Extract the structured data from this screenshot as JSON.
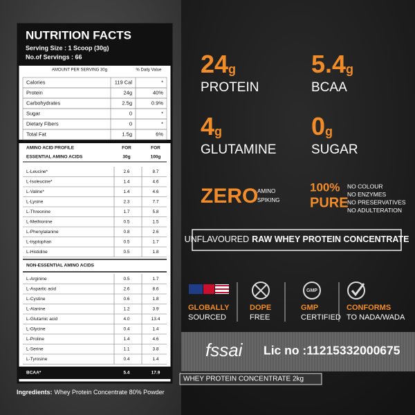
{
  "nutrition": {
    "title": "NUTRITION FACTS",
    "serving_size": "Serving Size : 1 Scoop (30g)",
    "servings": "No.of Servings : 66",
    "table_header": [
      "AMOUNT PER SERVING 30g",
      "% Daily Value"
    ],
    "rows": [
      [
        "Calories",
        "119 Cal",
        "*"
      ],
      [
        "Protein",
        "24g",
        "40%"
      ],
      [
        "Carbohydrates",
        "2.5g",
        "0.9%"
      ],
      [
        "Sugar",
        "0",
        "*"
      ],
      [
        "Dietary Fibers",
        "0",
        "*"
      ],
      [
        "Total Fat",
        "1.5g",
        "6%"
      ]
    ]
  },
  "amino": {
    "header": [
      "AMINO ACID PROFILE",
      "ESSENTIAL AMINO ACIDS"
    ],
    "col1": [
      "FOR",
      "30g"
    ],
    "col2": [
      "FOR",
      "100g"
    ],
    "essential": [
      [
        "L-Leucine*",
        "2.6",
        "8.7"
      ],
      [
        "L-Isoleucine*",
        "1.4",
        "4.6"
      ],
      [
        "L-Valine*",
        "1.4",
        "4.6"
      ],
      [
        "L-Lysine",
        "2.3",
        "7.7"
      ],
      [
        "L-Threonine",
        "1.7",
        "5.8"
      ],
      [
        "L-Methionine",
        "0.5",
        "1.5"
      ],
      [
        "L-Phenylalanine",
        "0.8",
        "2.6"
      ],
      [
        "L-tryptophan",
        "0.5",
        "1.7"
      ],
      [
        "L-Histidine",
        "0.5",
        "1.8"
      ]
    ],
    "non_essential_title": "NON-ESSENTIAL AMINO ACIDS",
    "non_essential": [
      [
        "L-Arginine",
        "0.5",
        "1.7"
      ],
      [
        "L-Aspartic acid",
        "2.6",
        "8.6"
      ],
      [
        "L-Cystine",
        "0.6",
        "1.8"
      ],
      [
        "L-Alanine",
        "1.2",
        "3.9"
      ],
      [
        "L-Glutamic acid",
        "4.0",
        "13.4"
      ],
      [
        "L-Glycine",
        "0.4",
        "1.4"
      ],
      [
        "L-Proline",
        "1.4",
        "4.6"
      ],
      [
        "L-Serine",
        "1.1",
        "3.8"
      ],
      [
        "L-Tyrosine",
        "0.4",
        "1.4"
      ]
    ],
    "bcaa": [
      "BCAA*",
      "5.4",
      "17.9"
    ]
  },
  "ingredients": {
    "label": "Ingredients:",
    "text": "Whey Protein Concentrate 80% Powder"
  },
  "highlights": [
    {
      "amount": "24",
      "unit": "g",
      "label": "PROTEIN"
    },
    {
      "amount": "5.4",
      "unit": "g",
      "label": "BCAA"
    },
    {
      "amount": "4",
      "unit": "g",
      "label": "GLUTAMINE"
    },
    {
      "amount": "0",
      "unit": "g",
      "label": "SUGAR"
    }
  ],
  "zero": {
    "word": "ZERO",
    "note": [
      "AMINO",
      "SPIKING"
    ]
  },
  "pure": {
    "word": [
      "100%",
      "PURE"
    ],
    "items": [
      "NO COLOUR",
      "NO ENZYMES",
      "NO PRESERVATIVES",
      "NO ADULTERATION"
    ]
  },
  "banner": {
    "prefix": "UNFLAVOURED",
    "bold": "RAW WHEY PROTEIN CONCENTRATE"
  },
  "badges": [
    {
      "line1": "GLOBALLY",
      "line2": "SOURCED"
    },
    {
      "line1": "DOPE",
      "line2": "FREE"
    },
    {
      "icon": "GMP",
      "line1": "GMP",
      "line2": "CERTIFIED"
    },
    {
      "line1": "CONFORMS",
      "line2": "TO NADA/WADA"
    }
  ],
  "license": {
    "logo": "fssai",
    "number": "Lic no :11215332000675"
  },
  "pack": "WHEY PROTEIN CONCENTRATE 2kg"
}
